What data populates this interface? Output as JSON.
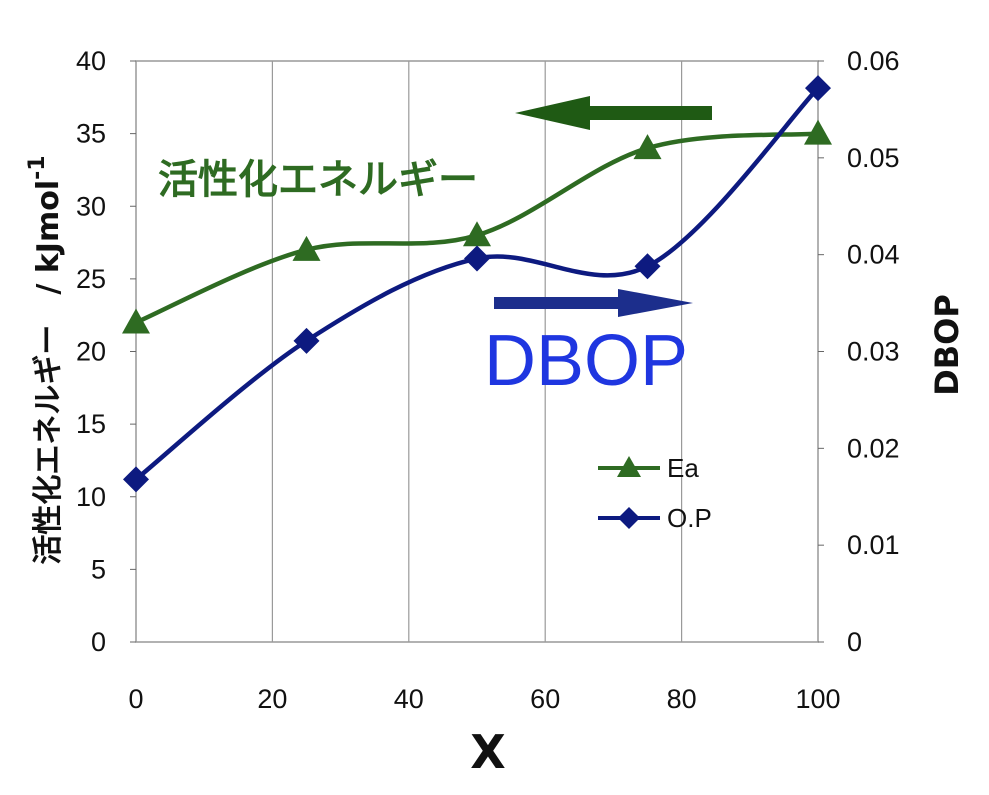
{
  "chart_data": {
    "type": "line",
    "xlabel": "X",
    "ylabel_left": "活性化エネルギー　/ kJmol",
    "ylabel_left_sup": "-1",
    "ylabel_right": "DBOP",
    "xlim": [
      0,
      100
    ],
    "ylim_left": [
      0,
      40
    ],
    "ylim_right": [
      0,
      0.06
    ],
    "x_ticks": [
      "0",
      "20",
      "40",
      "60",
      "80",
      "100"
    ],
    "y_left_ticks": [
      "0",
      "5",
      "10",
      "15",
      "20",
      "25",
      "30",
      "35",
      "40"
    ],
    "y_right_ticks": [
      "0",
      "0.01",
      "0.02",
      "0.03",
      "0.04",
      "0.05",
      "0.06"
    ],
    "grid": "vertical",
    "legend_position": "lower-right",
    "series": [
      {
        "name": "Ea",
        "axis": "left",
        "marker": "triangle",
        "color": "#2e6b22",
        "x": [
          0,
          25,
          50,
          75,
          100
        ],
        "y": [
          22,
          27,
          28,
          34,
          35
        ]
      },
      {
        "name": "O.P",
        "axis": "right",
        "marker": "diamond",
        "color": "#0d1a80",
        "x": [
          0,
          25,
          50,
          75,
          100
        ],
        "y": [
          0.0168,
          0.0311,
          0.0396,
          0.0388,
          0.0572
        ]
      }
    ],
    "annotations": [
      {
        "text": "活性化エネルギー",
        "color": "#2e6b22",
        "arrow": "left"
      },
      {
        "text": "DBOP",
        "color": "#1f36e0",
        "arrow": "right"
      }
    ]
  }
}
